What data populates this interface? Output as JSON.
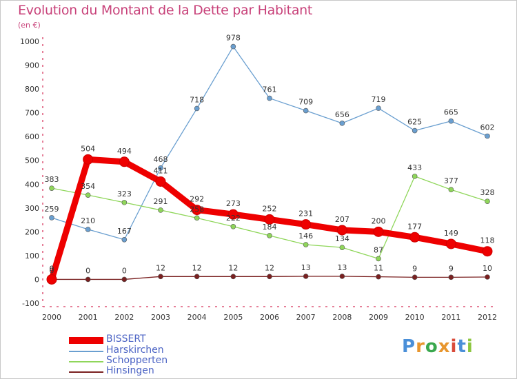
{
  "title": "Evolution du Montant de la Dette par Habitant",
  "subtitle": "(en €)",
  "brand": {
    "text": "Proxiti",
    "letters": [
      "P",
      "r",
      "o",
      "x",
      "i",
      "t",
      "i"
    ],
    "colors": [
      "#4a8fd8",
      "#e8962e",
      "#3aa84e",
      "#e8962e",
      "#d94b3a",
      "#4a8fd8",
      "#8cc63f"
    ]
  },
  "chart_data": {
    "type": "line",
    "x": [
      "2000",
      "2001",
      "2002",
      "2003",
      "2004",
      "2005",
      "2006",
      "2007",
      "2008",
      "2009",
      "2010",
      "2011",
      "2012"
    ],
    "ylim": [
      -100,
      1000
    ],
    "yticks": [
      "-100",
      "0",
      "100",
      "200",
      "300",
      "400",
      "500",
      "600",
      "700",
      "800",
      "900",
      "1000"
    ],
    "grid": false,
    "legend_position": "bottom-left",
    "series": [
      {
        "name": "BISSERT",
        "color": "#ee0000",
        "values": [
          0,
          504,
          494,
          411,
          292,
          273,
          252,
          231,
          207,
          200,
          177,
          149,
          118
        ],
        "labels": [
          "0",
          "504",
          "494",
          "411",
          "292",
          "273",
          "252",
          "231",
          "207",
          "200",
          "177",
          "149",
          "118"
        ]
      },
      {
        "name": "Harskirchen",
        "color": "#6a9fd0",
        "values": [
          259,
          210,
          167,
          468,
          718,
          978,
          761,
          709,
          656,
          719,
          625,
          665,
          602
        ],
        "labels": [
          "259",
          "210",
          "167",
          "468",
          "718",
          "978",
          "761",
          "709",
          "656",
          "719",
          "625",
          "665",
          "602"
        ]
      },
      {
        "name": "Schopperten",
        "color": "#8fd65a",
        "values": [
          383,
          354,
          323,
          291,
          258,
          222,
          184,
          146,
          134,
          87,
          433,
          377,
          328
        ],
        "labels": [
          "383",
          "354",
          "323",
          "291",
          "258",
          "222",
          "184",
          "146",
          "134",
          "87",
          "433",
          "377",
          "328"
        ]
      },
      {
        "name": "Hinsingen",
        "color": "#7a2020",
        "values": [
          0,
          0,
          0,
          12,
          12,
          12,
          12,
          13,
          13,
          11,
          9,
          9,
          10
        ],
        "labels": [
          "0",
          "0",
          "0",
          "12",
          "12",
          "12",
          "12",
          "13",
          "13",
          "11",
          "9",
          "9",
          "10"
        ]
      }
    ]
  }
}
